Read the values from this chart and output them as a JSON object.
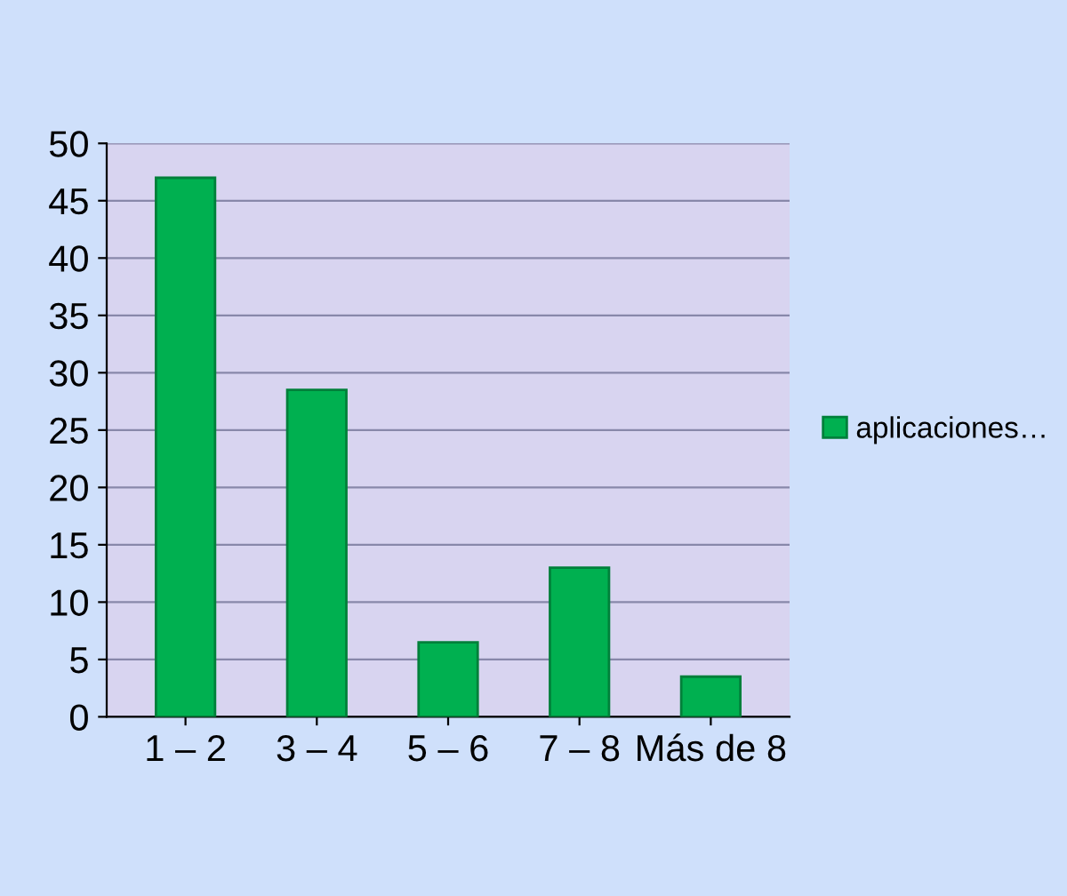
{
  "chart_data": {
    "type": "bar",
    "categories": [
      "1 – 2",
      "3 – 4",
      "5 – 6",
      "7 – 8",
      "Más de 8"
    ],
    "series": [
      {
        "name": "aplicaciones…",
        "color": "#00b050",
        "values": [
          47,
          28.5,
          6.5,
          13,
          3.5
        ]
      }
    ],
    "ylim": [
      0,
      50
    ],
    "yticks": [
      0,
      5,
      10,
      15,
      20,
      25,
      30,
      35,
      40,
      45,
      50
    ],
    "grid": "y",
    "legend": "right"
  }
}
